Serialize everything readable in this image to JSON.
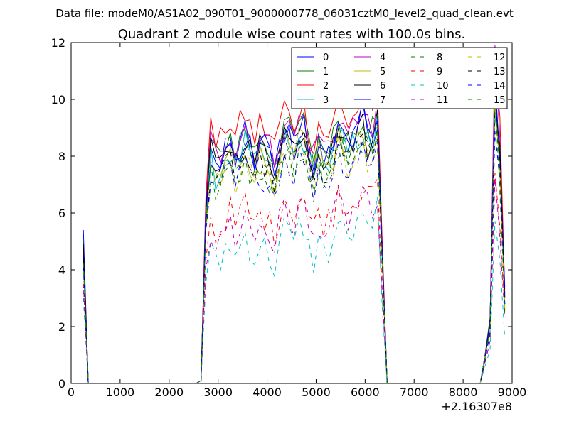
{
  "colors": {
    "series": [
      "#0000ff",
      "#008000",
      "#ff0000",
      "#00bfbf",
      "#bf00bf",
      "#bfbf00",
      "#000000",
      "#0000ff",
      "#008000",
      "#ff0000",
      "#00bfbf",
      "#bf00bf",
      "#bfbf00",
      "#000000",
      "#0000ff",
      "#008000"
    ],
    "background": "#ffffff",
    "axes": "#000000"
  },
  "chart_data": {
    "type": "line",
    "suptitle": "Data file: modeM0/AS1A02_090T01_9000000778_06031cztM0_level2_quad_clean.evt",
    "title": "Quadrant 2 module wise count rates with 100.0s bins.",
    "xlabel": "",
    "ylabel": "",
    "offset_label": "+2.16307e8",
    "xlim": [
      0,
      9000
    ],
    "ylim": [
      0,
      12
    ],
    "xticks": [
      0,
      1000,
      2000,
      3000,
      4000,
      5000,
      6000,
      7000,
      8000,
      9000
    ],
    "yticks": [
      0,
      2,
      4,
      6,
      8,
      10,
      12
    ],
    "grid": false,
    "legend": {
      "position": "top-right",
      "columns": 4
    },
    "x": [
      250,
      350,
      450,
      550,
      650,
      750,
      850,
      950,
      1050,
      1150,
      1250,
      1350,
      1450,
      1550,
      1650,
      1750,
      1850,
      1950,
      2050,
      2150,
      2250,
      2350,
      2450,
      2550,
      2650,
      2750,
      2850,
      2950,
      3050,
      3150,
      3250,
      3350,
      3450,
      3550,
      3650,
      3750,
      3850,
      3950,
      4050,
      4150,
      4250,
      4350,
      4450,
      4550,
      4650,
      4750,
      4850,
      4950,
      5050,
      5150,
      5250,
      5350,
      5450,
      5550,
      5650,
      5750,
      5850,
      5950,
      6050,
      6150,
      6250,
      6350,
      6450,
      6550,
      6650,
      6750,
      6850,
      6950,
      7050,
      7150,
      7250,
      7350,
      7450,
      7550,
      7650,
      7750,
      7850,
      7950,
      8050,
      8150,
      8250,
      8350,
      8450,
      8550,
      8650,
      8750,
      8850
    ],
    "series": [
      {
        "name": "0",
        "style": "solid",
        "base": 8.3,
        "start": 5.4,
        "end": 2.8
      },
      {
        "name": "1",
        "style": "solid",
        "base": 8.6,
        "start": 5.0,
        "end": 3.0
      },
      {
        "name": "2",
        "style": "solid",
        "base": 9.1,
        "start": 4.8,
        "end": 3.2
      },
      {
        "name": "3",
        "style": "solid",
        "base": 8.0,
        "start": 4.6,
        "end": 2.5
      },
      {
        "name": "4",
        "style": "solid",
        "base": 8.7,
        "start": 4.7,
        "end": 3.0
      },
      {
        "name": "5",
        "style": "solid",
        "base": 7.9,
        "start": 4.4,
        "end": 2.7
      },
      {
        "name": "6",
        "style": "solid",
        "base": 8.3,
        "start": 4.9,
        "end": 3.1
      },
      {
        "name": "7",
        "style": "solid",
        "base": 8.4,
        "start": 4.5,
        "end": 3.4
      },
      {
        "name": "8",
        "style": "dashed",
        "base": 7.7,
        "start": 4.3,
        "end": 2.9
      },
      {
        "name": "9",
        "style": "dashed",
        "base": 6.0,
        "start": 3.5,
        "end": 2.6
      },
      {
        "name": "10",
        "style": "dashed",
        "base": 4.9,
        "start": 3.0,
        "end": 1.6
      },
      {
        "name": "11",
        "style": "dashed",
        "base": 5.6,
        "start": 3.3,
        "end": 2.3
      },
      {
        "name": "12",
        "style": "dashed",
        "base": 7.5,
        "start": 4.2,
        "end": 2.6
      },
      {
        "name": "13",
        "style": "dashed",
        "base": 7.8,
        "start": 4.4,
        "end": 3.0
      },
      {
        "name": "14",
        "style": "dashed",
        "base": 7.4,
        "start": 4.1,
        "end": 2.8
      },
      {
        "name": "15",
        "style": "dashed",
        "base": 7.6,
        "start": 4.2,
        "end": 2.4
      }
    ],
    "active_segments": [
      {
        "from": 2650,
        "to": 6350,
        "level": "base"
      },
      {
        "from": 8450,
        "to": 8850,
        "level": "burst"
      }
    ]
  }
}
